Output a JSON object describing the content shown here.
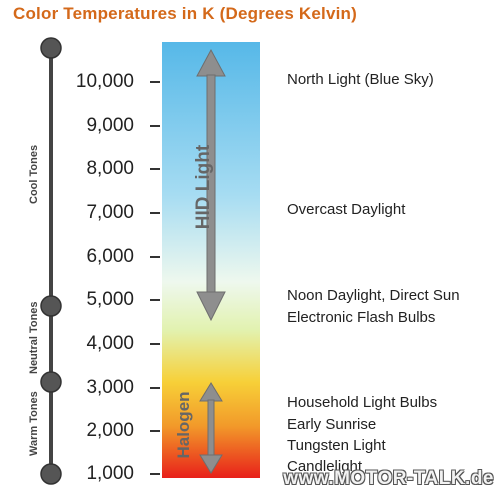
{
  "title": "Color Temperatures in K (Degrees Kelvin)",
  "scale": {
    "ticks": [
      "10,000",
      "9,000",
      "8,000",
      "7,000",
      "6,000",
      "5,000",
      "4,000",
      "3,000",
      "2,000",
      "1,000"
    ]
  },
  "tones": {
    "cool": "Cool Tones",
    "neutral": "Neutral Tones",
    "warm": "Warm Tones"
  },
  "bar_labels": {
    "hid": "HID Light",
    "halogen": "Halogen"
  },
  "annotations": [
    "North Light (Blue Sky)",
    "Overcast Daylight",
    "Noon Daylight, Direct Sun",
    "Electronic Flash Bulbs",
    "Household Light Bulbs",
    "Early Sunrise",
    "Tungsten Light",
    "Candlelight"
  ],
  "watermark": "www.MOTOR-TALK.de",
  "colors": {
    "title": "#d4691a",
    "spectrum_top": "#56b8e8",
    "spectrum_warm": "#f7d038",
    "spectrum_bottom": "#e8201a"
  }
}
